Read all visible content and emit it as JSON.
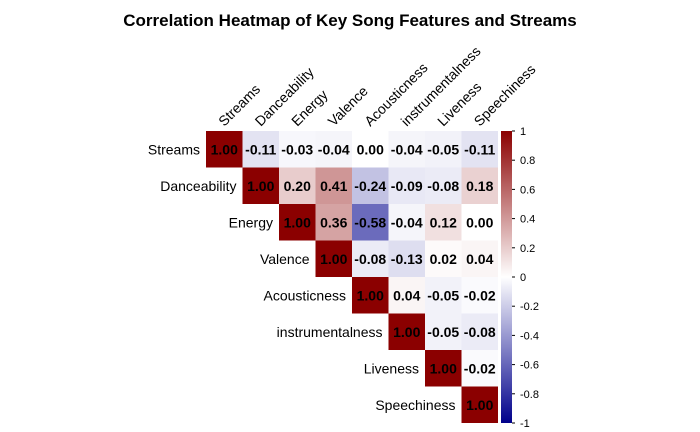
{
  "chart_data": {
    "type": "heatmap",
    "title": "Correlation Heatmap of Key Song Features and Streams",
    "variables": [
      "Streams",
      "Danceability",
      "Energy",
      "Valence",
      "Acousticness",
      "instrumentalness",
      "Liveness",
      "Speechiness"
    ],
    "display": "upper-triangle",
    "matrix": [
      [
        1.0,
        -0.11,
        -0.03,
        -0.04,
        0.0,
        -0.04,
        -0.05,
        -0.11
      ],
      [
        null,
        1.0,
        0.2,
        0.41,
        -0.24,
        -0.09,
        -0.08,
        0.18
      ],
      [
        null,
        null,
        1.0,
        0.36,
        -0.58,
        -0.04,
        0.12,
        0.0
      ],
      [
        null,
        null,
        null,
        1.0,
        -0.08,
        -0.13,
        0.02,
        0.04
      ],
      [
        null,
        null,
        null,
        null,
        1.0,
        0.04,
        -0.05,
        -0.02
      ],
      [
        null,
        null,
        null,
        null,
        null,
        1.0,
        -0.05,
        -0.08
      ],
      [
        null,
        null,
        null,
        null,
        null,
        null,
        1.0,
        -0.02
      ],
      [
        null,
        null,
        null,
        null,
        null,
        null,
        null,
        1.0
      ]
    ],
    "value_labels": [
      [
        "1.00",
        "-0.11",
        "-0.03",
        "-0.04",
        "0.00",
        "-0.04",
        "-0.05",
        "-0.11"
      ],
      [
        null,
        "1.00",
        "0.20",
        "0.41",
        "-0.24",
        "-0.09",
        "-0.08",
        "0.18"
      ],
      [
        null,
        null,
        "1.00",
        "0.36",
        "-0.58",
        "-0.04",
        "0.12",
        "0.00"
      ],
      [
        null,
        null,
        null,
        "1.00",
        "-0.08",
        "-0.13",
        "0.02",
        "0.04"
      ],
      [
        null,
        null,
        null,
        null,
        "1.00",
        "0.04",
        "-0.05",
        "-0.02"
      ],
      [
        null,
        null,
        null,
        null,
        null,
        "1.00",
        "-0.05",
        "-0.08"
      ],
      [
        null,
        null,
        null,
        null,
        null,
        null,
        "1.00",
        "-0.02"
      ],
      [
        null,
        null,
        null,
        null,
        null,
        null,
        null,
        "1.00"
      ]
    ],
    "color_scale": {
      "range": [
        -1,
        1
      ],
      "low_color": "#00008B",
      "mid_color": "#FFFFFF",
      "high_color": "#8B0000",
      "ticks": [
        "1",
        "0.8",
        "0.6",
        "0.4",
        "0.2",
        "0",
        "-0.2",
        "-0.4",
        "-0.6",
        "-0.8",
        "-1"
      ]
    },
    "legend_placement": "right",
    "grid": false
  }
}
